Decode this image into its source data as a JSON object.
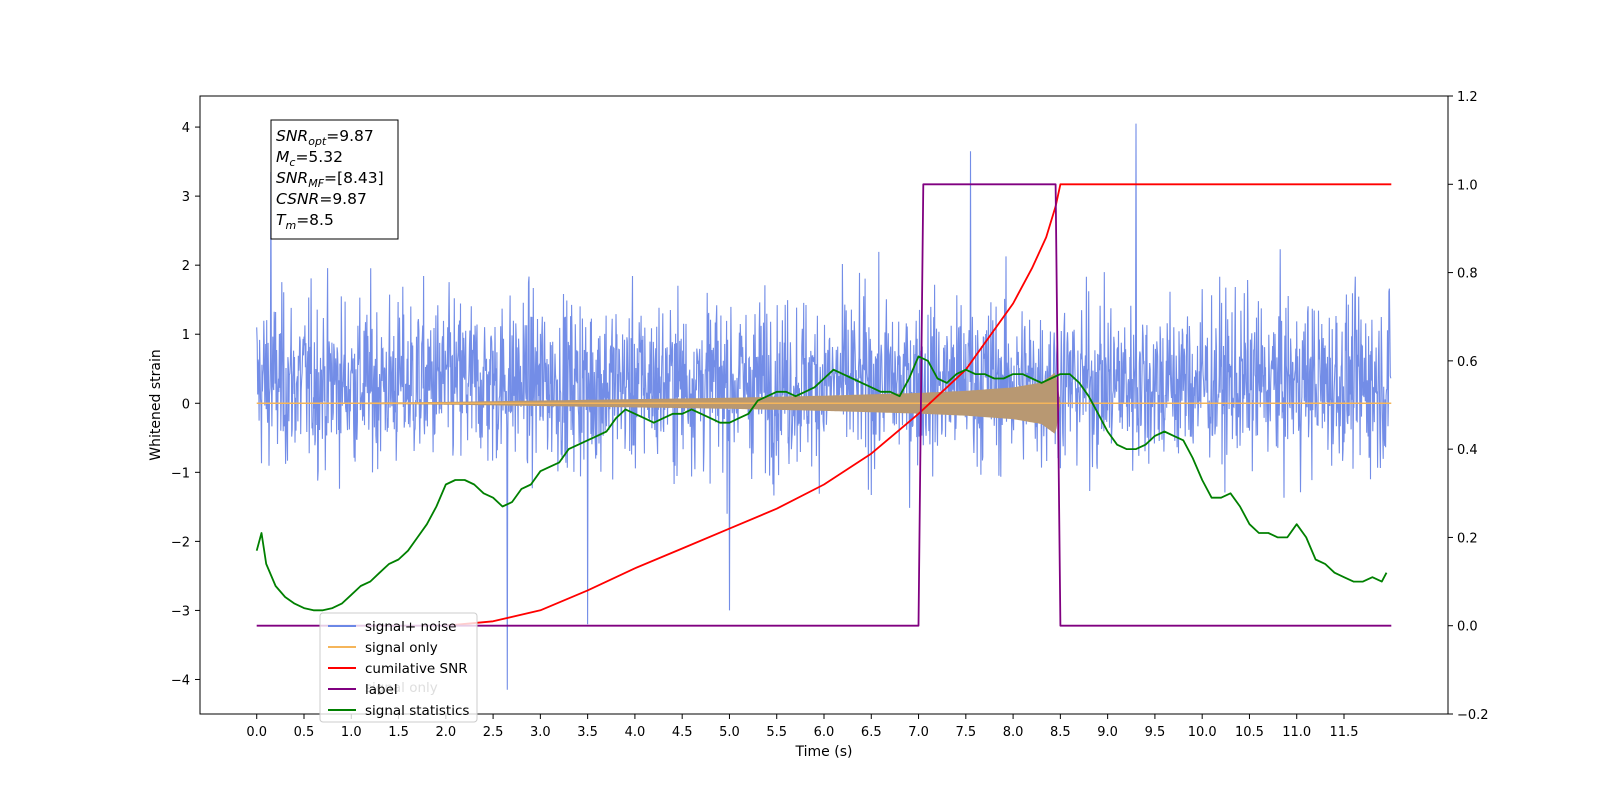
{
  "chart_data": {
    "type": "line",
    "title": "",
    "xlabel": "Time (s)",
    "ylabel": "Whitened strain",
    "ylabel_right": "",
    "xlim": [
      -0.6,
      12.6
    ],
    "ylim": [
      -4.5,
      4.45
    ],
    "ylim_right": [
      -0.2,
      1.2
    ],
    "x_ticks": [
      "0.0",
      "0.5",
      "1.0",
      "1.5",
      "2.0",
      "2.5",
      "3.0",
      "3.5",
      "4.0",
      "4.5",
      "5.0",
      "5.5",
      "6.0",
      "6.5",
      "7.0",
      "7.5",
      "8.0",
      "8.5",
      "9.0",
      "9.5",
      "10.0",
      "10.5",
      "11.0",
      "11.5"
    ],
    "y_ticks": [
      "4",
      "3",
      "2",
      "1",
      "0",
      "−1",
      "−2",
      "−3",
      "−4"
    ],
    "y_ticks_right": [
      "1.2",
      "1.0",
      "0.8",
      "0.6",
      "0.4",
      "0.2",
      "0.0",
      "−0.2"
    ],
    "grid": false,
    "legend_position": "lower-left",
    "series": [
      {
        "name": "signal+ noise",
        "axis": "left",
        "color": "#6b87e6",
        "description_values": {
          "x_start": 0.0,
          "x_end": 12.0,
          "typical_range": [
            -1.5,
            2.2
          ],
          "spikes": [
            [
              0.15,
              3.35
            ],
            [
              2.65,
              -4.15
            ],
            [
              7.55,
              3.65
            ],
            [
              9.3,
              4.05
            ],
            [
              3.5,
              -3.2
            ],
            [
              5.0,
              -3.0
            ]
          ]
        }
      },
      {
        "name": "signal only",
        "axis": "left",
        "color": "#f5b55a",
        "fill_color": "#b89872",
        "envelope": {
          "x": [
            0.0,
            1.0,
            2.0,
            3.0,
            4.0,
            5.0,
            6.0,
            7.0,
            7.5,
            8.0,
            8.3,
            8.45,
            8.5,
            12.0
          ],
          "amp": [
            0.0,
            0.01,
            0.02,
            0.04,
            0.06,
            0.08,
            0.11,
            0.15,
            0.18,
            0.23,
            0.3,
            0.45,
            0.0,
            0.0
          ]
        }
      },
      {
        "name": "cumilative SNR",
        "axis": "right",
        "color": "#ff0000",
        "x": [
          2.0,
          2.5,
          3.0,
          3.5,
          4.0,
          4.5,
          5.0,
          5.5,
          6.0,
          6.5,
          7.0,
          7.5,
          8.0,
          8.2,
          8.35,
          8.45,
          8.5,
          12.0
        ],
        "y": [
          0.0,
          0.01,
          0.035,
          0.08,
          0.13,
          0.175,
          0.22,
          0.265,
          0.32,
          0.39,
          0.48,
          0.58,
          0.73,
          0.81,
          0.88,
          0.95,
          1.0,
          1.0
        ]
      },
      {
        "name": "label",
        "axis": "right",
        "color": "#800080",
        "x": [
          0.0,
          7.0,
          7.05,
          8.45,
          8.5,
          12.0
        ],
        "y": [
          0.0,
          0.0,
          1.0,
          1.0,
          0.0,
          0.0
        ]
      },
      {
        "name": "signal statistics",
        "axis": "right",
        "color": "#008000",
        "x": [
          0.0,
          0.05,
          0.1,
          0.2,
          0.3,
          0.4,
          0.5,
          0.6,
          0.7,
          0.8,
          0.9,
          1.0,
          1.1,
          1.2,
          1.3,
          1.4,
          1.5,
          1.6,
          1.7,
          1.8,
          1.9,
          2.0,
          2.1,
          2.2,
          2.3,
          2.4,
          2.5,
          2.6,
          2.7,
          2.8,
          2.9,
          3.0,
          3.1,
          3.2,
          3.3,
          3.4,
          3.5,
          3.6,
          3.7,
          3.8,
          3.9,
          4.0,
          4.1,
          4.2,
          4.3,
          4.4,
          4.5,
          4.6,
          4.7,
          4.8,
          4.9,
          5.0,
          5.1,
          5.2,
          5.3,
          5.4,
          5.5,
          5.6,
          5.7,
          5.8,
          5.9,
          6.0,
          6.1,
          6.2,
          6.3,
          6.4,
          6.5,
          6.6,
          6.7,
          6.8,
          6.9,
          7.0,
          7.1,
          7.2,
          7.3,
          7.4,
          7.5,
          7.6,
          7.7,
          7.8,
          7.9,
          8.0,
          8.1,
          8.2,
          8.3,
          8.4,
          8.5,
          8.6,
          8.7,
          8.8,
          8.9,
          9.0,
          9.1,
          9.2,
          9.3,
          9.4,
          9.5,
          9.6,
          9.7,
          9.8,
          9.9,
          10.0,
          10.1,
          10.2,
          10.3,
          10.4,
          10.5,
          10.6,
          10.7,
          10.8,
          10.9,
          11.0,
          11.1,
          11.2,
          11.3,
          11.4,
          11.5,
          11.6,
          11.7,
          11.8,
          11.9,
          11.95
        ],
        "y": [
          0.17,
          0.21,
          0.14,
          0.09,
          0.065,
          0.05,
          0.04,
          0.035,
          0.035,
          0.04,
          0.05,
          0.07,
          0.09,
          0.1,
          0.12,
          0.14,
          0.15,
          0.17,
          0.2,
          0.23,
          0.27,
          0.32,
          0.33,
          0.33,
          0.32,
          0.3,
          0.29,
          0.27,
          0.28,
          0.31,
          0.32,
          0.35,
          0.36,
          0.37,
          0.4,
          0.41,
          0.42,
          0.43,
          0.44,
          0.47,
          0.49,
          0.48,
          0.47,
          0.46,
          0.47,
          0.48,
          0.48,
          0.49,
          0.48,
          0.47,
          0.46,
          0.46,
          0.47,
          0.48,
          0.51,
          0.52,
          0.53,
          0.53,
          0.52,
          0.53,
          0.54,
          0.56,
          0.58,
          0.57,
          0.56,
          0.55,
          0.54,
          0.53,
          0.53,
          0.52,
          0.56,
          0.61,
          0.6,
          0.56,
          0.55,
          0.57,
          0.58,
          0.57,
          0.57,
          0.56,
          0.56,
          0.57,
          0.57,
          0.56,
          0.55,
          0.56,
          0.57,
          0.57,
          0.55,
          0.52,
          0.48,
          0.44,
          0.41,
          0.4,
          0.4,
          0.41,
          0.43,
          0.44,
          0.43,
          0.42,
          0.38,
          0.33,
          0.29,
          0.29,
          0.3,
          0.27,
          0.23,
          0.21,
          0.21,
          0.2,
          0.2,
          0.23,
          0.2,
          0.15,
          0.14,
          0.12,
          0.11,
          0.1,
          0.1,
          0.11,
          0.1,
          0.12
        ]
      }
    ],
    "legend": [
      "signal+ noise",
      "signal only",
      "cumilative SNR",
      "label",
      "signal statistics"
    ],
    "legend_ghost_text": "signal only",
    "annotation_lines": [
      {
        "base": "SNR",
        "sub": "opt",
        "rest": "=9.87"
      },
      {
        "base": "M",
        "sub": "c",
        "rest": "=5.32"
      },
      {
        "base": "SNR",
        "sub": "MF",
        "rest": "=[8.43]"
      },
      {
        "base": "CSNR",
        "sub": "",
        "rest": "=9.87"
      },
      {
        "base": "T",
        "sub": "m",
        "rest": "=8.5"
      }
    ]
  }
}
